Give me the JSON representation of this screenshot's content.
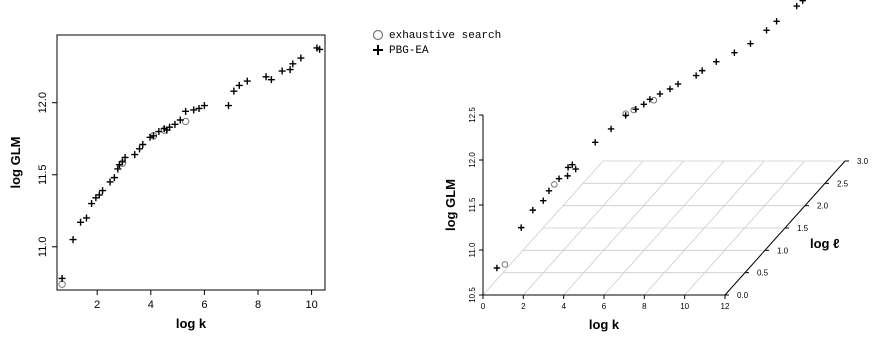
{
  "legend": {
    "items": [
      {
        "label": "exhaustive search",
        "marker": "circle",
        "color": "#777777"
      },
      {
        "label": "PBG-EA",
        "marker": "plus",
        "color": "#000000"
      }
    ]
  },
  "chart_data": [
    {
      "type": "scatter",
      "xlabel": "log k",
      "ylabel": "log GLM",
      "xlim": [
        0.5,
        10.5
      ],
      "ylim": [
        10.7,
        12.47
      ],
      "xticks": [
        2,
        4,
        6,
        8,
        10
      ],
      "yticks": [
        11.0,
        11.5,
        12.0
      ],
      "grid": false,
      "series": [
        {
          "name": "exhaustive search",
          "marker": "circle",
          "points": [
            [
              0.69,
              10.74
            ],
            [
              2.94,
              11.58
            ],
            [
              4.1,
              11.77
            ],
            [
              4.5,
              11.81
            ],
            [
              5.3,
              11.87
            ]
          ]
        },
        {
          "name": "PBG-EA",
          "marker": "plus",
          "points": [
            [
              0.69,
              10.78
            ],
            [
              1.1,
              11.05
            ],
            [
              1.38,
              11.17
            ],
            [
              1.6,
              11.2
            ],
            [
              1.79,
              11.3
            ],
            [
              1.95,
              11.34
            ],
            [
              2.08,
              11.36
            ],
            [
              2.2,
              11.39
            ],
            [
              2.48,
              11.45
            ],
            [
              2.64,
              11.48
            ],
            [
              2.77,
              11.54
            ],
            [
              2.83,
              11.57
            ],
            [
              2.94,
              11.59
            ],
            [
              3.04,
              11.62
            ],
            [
              3.4,
              11.64
            ],
            [
              3.58,
              11.68
            ],
            [
              3.7,
              11.71
            ],
            [
              3.97,
              11.76
            ],
            [
              4.1,
              11.77
            ],
            [
              4.3,
              11.8
            ],
            [
              4.5,
              11.82
            ],
            [
              4.6,
              11.81
            ],
            [
              4.7,
              11.83
            ],
            [
              4.9,
              11.85
            ],
            [
              5.1,
              11.88
            ],
            [
              5.3,
              11.94
            ],
            [
              5.6,
              11.95
            ],
            [
              5.8,
              11.96
            ],
            [
              6.0,
              11.98
            ],
            [
              6.9,
              11.98
            ],
            [
              7.1,
              12.08
            ],
            [
              7.3,
              12.12
            ],
            [
              7.6,
              12.15
            ],
            [
              8.3,
              12.18
            ],
            [
              8.5,
              12.16
            ],
            [
              8.9,
              12.22
            ],
            [
              9.2,
              12.23
            ],
            [
              9.3,
              12.27
            ],
            [
              9.6,
              12.31
            ],
            [
              10.2,
              12.38
            ],
            [
              10.3,
              12.37
            ]
          ]
        }
      ]
    },
    {
      "type": "scatter",
      "subtype": "3d-scatter",
      "xlabel": "log k",
      "ylabel": "log GLM",
      "zlabel": "log ℓ",
      "xlim": [
        0,
        12
      ],
      "ylim": [
        10.5,
        12.5
      ],
      "zlim": [
        0,
        3
      ],
      "xticks": [
        0,
        2,
        4,
        6,
        8,
        10,
        12
      ],
      "yticks": [
        10.5,
        11.0,
        11.5,
        12.0,
        12.5
      ],
      "zticks": [
        0.0,
        0.5,
        1.0,
        1.5,
        2.0,
        2.5,
        3.0
      ],
      "grid": true,
      "series": [
        {
          "name": "exhaustive search",
          "marker": "circle",
          "points": [
            [
              0.69,
              10.74,
              0.2
            ],
            [
              2.94,
              11.58,
              0.3
            ],
            [
              4.1,
              11.77,
              1.5
            ],
            [
              4.5,
              11.81,
              1.5
            ],
            [
              5.3,
              11.87,
              1.6
            ]
          ]
        },
        {
          "name": "PBG-EA",
          "marker": "plus",
          "points": [
            [
              0.69,
              10.8,
              0.0
            ],
            [
              1.1,
              11.05,
              0.4
            ],
            [
              1.38,
              11.17,
              0.55
            ],
            [
              1.6,
              11.2,
              0.7
            ],
            [
              2.08,
              11.36,
              0.6
            ],
            [
              2.48,
              11.47,
              0.65
            ],
            [
              2.83,
              11.57,
              0.7
            ],
            [
              3.04,
              11.6,
              0.7
            ],
            [
              3.5,
              11.65,
              0.35
            ],
            [
              4.0,
              11.75,
              0.3
            ],
            [
              3.58,
              11.7,
              1.0
            ],
            [
              3.97,
              11.75,
              1.2
            ],
            [
              4.3,
              11.8,
              1.4
            ],
            [
              4.6,
              11.82,
              1.5
            ],
            [
              4.9,
              11.85,
              1.55
            ],
            [
              5.1,
              11.88,
              1.6
            ],
            [
              5.6,
              11.94,
              1.6
            ],
            [
              6.0,
              11.97,
              1.65
            ],
            [
              6.3,
              12.0,
              1.7
            ],
            [
              6.9,
              12.02,
              1.85
            ],
            [
              7.1,
              12.05,
              1.9
            ],
            [
              7.6,
              12.1,
              2.0
            ],
            [
              8.3,
              12.15,
              2.1
            ],
            [
              8.9,
              12.2,
              2.2
            ],
            [
              9.3,
              12.25,
              2.4
            ],
            [
              9.6,
              12.3,
              2.5
            ],
            [
              10.2,
              12.37,
              2.7
            ],
            [
              10.3,
              12.38,
              2.8
            ],
            [
              10.5,
              12.42,
              3.0
            ]
          ]
        }
      ]
    }
  ]
}
